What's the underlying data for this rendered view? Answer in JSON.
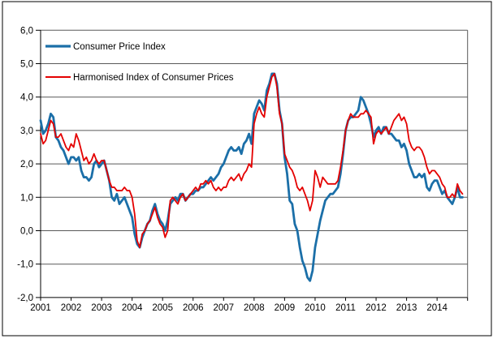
{
  "chart_data": {
    "type": "line",
    "x_frequency": "monthly",
    "x_start": "2001-01",
    "x_end": "2014-11",
    "x_tick_labels": [
      "2001",
      "2002",
      "2003",
      "2004",
      "2005",
      "2006",
      "2007",
      "2008",
      "2009",
      "2010",
      "2011",
      "2012",
      "2013",
      "2014"
    ],
    "y_tick_labels": [
      "6,0",
      "5,0",
      "4,0",
      "3,0",
      "2,0",
      "1,0",
      "0,0",
      "-1,0",
      "-2,0"
    ],
    "y_values": [
      6,
      5,
      4,
      3,
      2,
      1,
      0,
      -1,
      -2
    ],
    "ylim": [
      -2,
      6
    ],
    "grid": "horizontal",
    "legend_position": "top-left-inside",
    "axis_color": "#000000",
    "grid_color": "#595959",
    "series": [
      {
        "name": "Consumer Price Index",
        "color": "#1b6fa8",
        "line_width": 2.8,
        "values": [
          3.3,
          2.9,
          3.0,
          3.2,
          3.5,
          3.4,
          2.8,
          2.7,
          2.5,
          2.4,
          2.2,
          2.0,
          2.2,
          2.2,
          2.1,
          2.2,
          1.8,
          1.6,
          1.6,
          1.5,
          1.6,
          2.0,
          2.1,
          1.9,
          2.0,
          2.1,
          1.8,
          1.5,
          1.0,
          0.9,
          1.1,
          0.8,
          0.9,
          1.0,
          0.8,
          0.6,
          0.4,
          -0.1,
          -0.4,
          -0.5,
          -0.2,
          0.0,
          0.2,
          0.3,
          0.6,
          0.8,
          0.5,
          0.3,
          0.2,
          0.0,
          0.3,
          0.8,
          0.9,
          1.0,
          0.9,
          1.1,
          1.1,
          0.9,
          1.0,
          1.1,
          1.1,
          1.2,
          1.2,
          1.3,
          1.3,
          1.4,
          1.5,
          1.6,
          1.5,
          1.6,
          1.7,
          1.9,
          2.0,
          2.2,
          2.4,
          2.5,
          2.4,
          2.4,
          2.5,
          2.3,
          2.6,
          2.7,
          2.9,
          2.6,
          3.5,
          3.7,
          3.9,
          3.8,
          3.6,
          4.2,
          4.4,
          4.7,
          4.7,
          4.4,
          3.6,
          3.2,
          2.2,
          1.7,
          0.9,
          0.8,
          0.2,
          0.0,
          -0.5,
          -0.9,
          -1.1,
          -1.4,
          -1.5,
          -1.2,
          -0.5,
          -0.1,
          0.3,
          0.6,
          0.9,
          1.0,
          1.1,
          1.1,
          1.2,
          1.3,
          1.7,
          2.3,
          3.0,
          3.3,
          3.4,
          3.4,
          3.5,
          3.6,
          4.0,
          3.9,
          3.7,
          3.5,
          3.2,
          2.8,
          3.0,
          3.1,
          2.9,
          3.1,
          3.1,
          2.9,
          2.9,
          2.8,
          2.7,
          2.7,
          2.5,
          2.6,
          2.4,
          2.0,
          1.8,
          1.6,
          1.6,
          1.7,
          1.6,
          1.7,
          1.3,
          1.2,
          1.4,
          1.5,
          1.5,
          1.3,
          1.1,
          1.2,
          1.0,
          0.9,
          0.8,
          1.0,
          1.3,
          1.0,
          1.0
        ]
      },
      {
        "name": "Harmonised Index of Consumer Prices",
        "color": "#e40000",
        "line_width": 1.8,
        "values": [
          2.9,
          2.6,
          2.7,
          3.0,
          3.3,
          3.2,
          2.8,
          2.8,
          2.9,
          2.7,
          2.5,
          2.4,
          2.6,
          2.5,
          2.9,
          2.7,
          2.4,
          2.1,
          2.2,
          2.0,
          2.1,
          2.3,
          2.1,
          2.0,
          2.1,
          2.1,
          1.8,
          1.5,
          1.3,
          1.3,
          1.2,
          1.2,
          1.2,
          1.3,
          1.2,
          1.2,
          1.0,
          0.5,
          -0.3,
          -0.5,
          -0.1,
          0.0,
          0.2,
          0.3,
          0.5,
          0.7,
          0.4,
          0.2,
          0.1,
          -0.2,
          0.0,
          0.9,
          1.0,
          0.9,
          0.8,
          1.0,
          1.1,
          0.9,
          1.0,
          1.1,
          1.2,
          1.3,
          1.2,
          1.4,
          1.4,
          1.5,
          1.4,
          1.5,
          1.3,
          1.2,
          1.3,
          1.2,
          1.3,
          1.3,
          1.5,
          1.6,
          1.5,
          1.6,
          1.7,
          1.5,
          1.7,
          1.8,
          2.0,
          1.9,
          3.2,
          3.5,
          3.7,
          3.5,
          3.4,
          4.0,
          4.3,
          4.6,
          4.7,
          4.3,
          3.5,
          3.2,
          2.3,
          2.1,
          1.9,
          1.8,
          1.6,
          1.3,
          1.2,
          1.3,
          1.1,
          0.9,
          0.6,
          0.9,
          1.8,
          1.6,
          1.3,
          1.6,
          1.5,
          1.4,
          1.4,
          1.4,
          1.4,
          1.5,
          1.9,
          2.4,
          3.0,
          3.3,
          3.5,
          3.4,
          3.4,
          3.4,
          3.5,
          3.5,
          3.6,
          3.5,
          3.4,
          2.6,
          2.9,
          3.0,
          2.9,
          3.0,
          3.1,
          2.9,
          3.1,
          3.3,
          3.4,
          3.5,
          3.3,
          3.4,
          3.2,
          2.7,
          2.5,
          2.4,
          2.5,
          2.5,
          2.4,
          2.2,
          1.9,
          1.7,
          1.8,
          1.8,
          1.7,
          1.6,
          1.4,
          1.3,
          1.0,
          1.0,
          1.1,
          1.0,
          1.4,
          1.2,
          1.1
        ]
      }
    ]
  }
}
